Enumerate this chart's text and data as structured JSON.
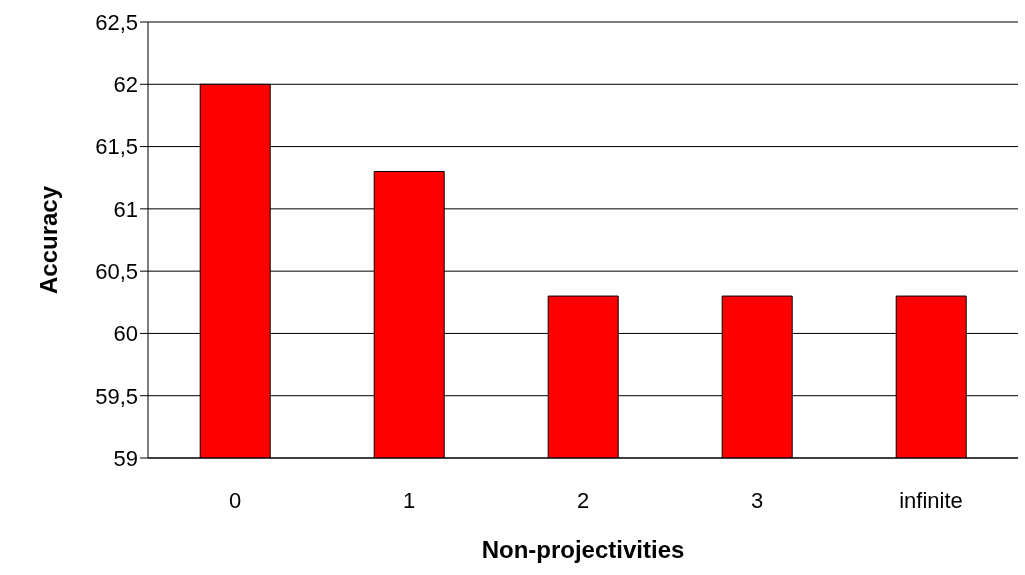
{
  "chart_data": {
    "type": "bar",
    "xlabel": "Non-projectivities",
    "ylabel": "Accuracy",
    "categories": [
      "0",
      "1",
      "2",
      "3",
      "infinite"
    ],
    "values": [
      62,
      61.3,
      60.3,
      60.3,
      60.3
    ],
    "color": "#ff0000",
    "ylim": [
      59,
      62.5
    ],
    "yticks": [
      59,
      {
        "value": 59.5,
        "label": "59,5"
      },
      60,
      {
        "value": 60.5,
        "label": "60,5"
      },
      61,
      {
        "value": 61.5,
        "label": "61,5"
      },
      62,
      {
        "value": 62.5,
        "label": "62,5"
      }
    ],
    "grid": "y",
    "legend": false
  }
}
